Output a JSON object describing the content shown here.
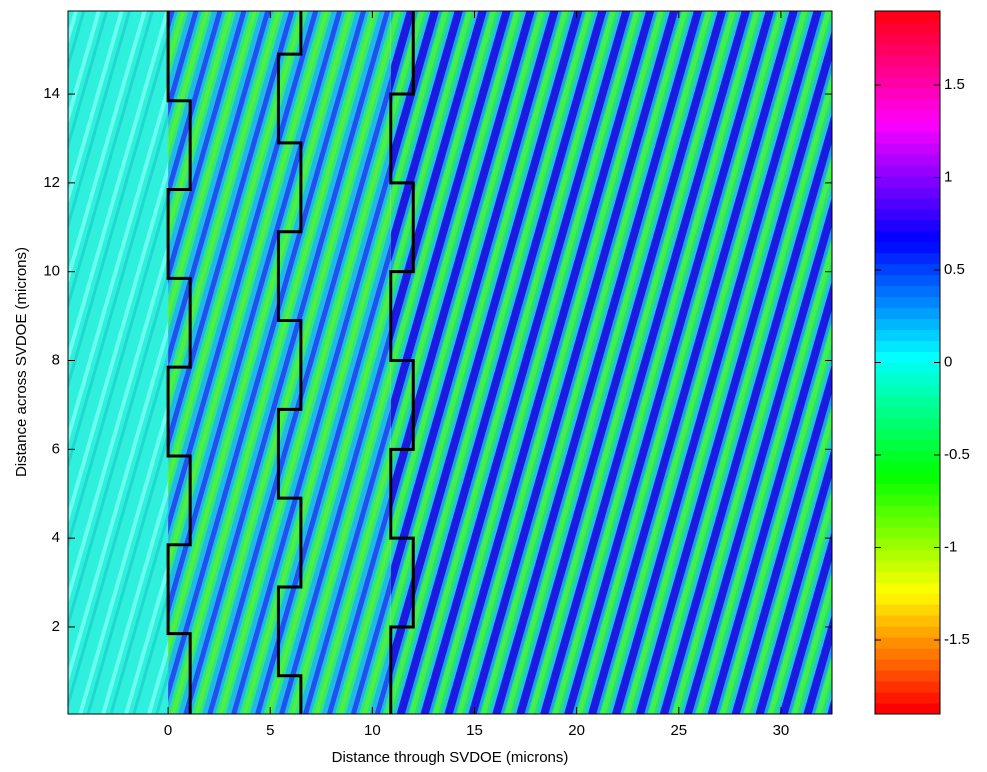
{
  "chart_data": {
    "type": "field",
    "xlabel": "Distance through SVDOE (microns)",
    "ylabel": "Distance across SVDOE (microns)",
    "xlim": [
      -4.9,
      32.5
    ],
    "xticks": [
      0,
      5,
      10,
      15,
      20,
      25,
      30
    ],
    "ylim": [
      0.04,
      15.87
    ],
    "yticks": [
      2,
      4,
      6,
      8,
      10,
      12,
      14
    ],
    "colormap": "hsv",
    "clim": [
      -1.9,
      1.9
    ],
    "cticks": [
      -1.5,
      -1,
      -0.5,
      0,
      0.5,
      1,
      1.5
    ],
    "series": [
      {
        "color": "#000000",
        "x": [
          1.08,
          1.08,
          0,
          0,
          1.08,
          1.08,
          0,
          0,
          1.08,
          1.08,
          0,
          0,
          1.08,
          1.08,
          0,
          0
        ],
        "y": [
          0.04,
          1.85,
          1.85,
          3.85,
          3.85,
          5.85,
          5.85,
          7.85,
          7.85,
          9.85,
          9.85,
          11.85,
          11.85,
          13.85,
          13.85,
          15.87
        ]
      },
      {
        "color": "#000000",
        "x": [
          6.5,
          6.5,
          5.4,
          5.4,
          6.5,
          6.5,
          5.4,
          5.4,
          6.5,
          6.5,
          5.4,
          5.4,
          6.5,
          6.5,
          5.4,
          5.4,
          6.5,
          6.5
        ],
        "y": [
          0.04,
          0.9,
          0.9,
          2.9,
          2.9,
          4.9,
          4.9,
          6.9,
          6.9,
          8.9,
          8.9,
          10.9,
          10.9,
          12.9,
          12.9,
          14.9,
          14.9,
          15.87
        ]
      },
      {
        "color": "#000000",
        "x": [
          10.9,
          10.9,
          12,
          12,
          10.9,
          10.9,
          12,
          12,
          10.9,
          10.9,
          12,
          12,
          10.9,
          10.9,
          12,
          12
        ],
        "y": [
          0.04,
          2,
          2,
          4,
          4,
          6,
          6,
          8,
          8,
          10,
          10,
          12,
          12,
          14,
          14,
          15.87
        ]
      }
    ]
  }
}
